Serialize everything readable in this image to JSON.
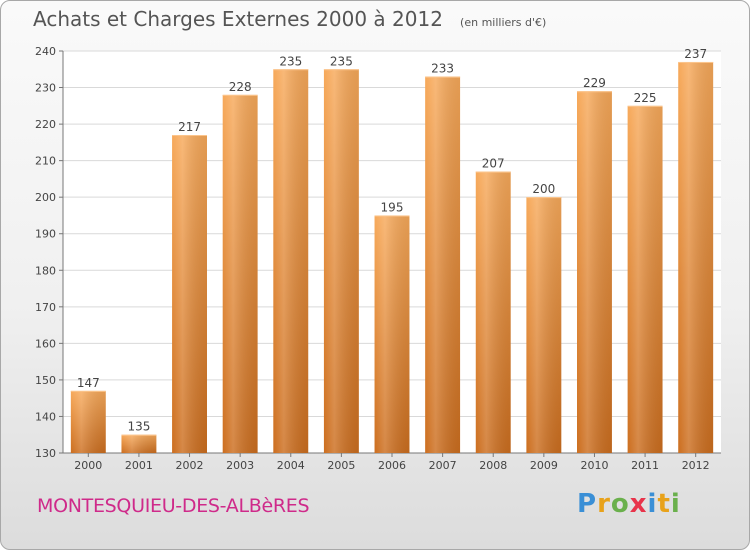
{
  "header": {
    "title": "Achats et Charges Externes 2000 à 2012",
    "subtitle": "(en milliers d'€)"
  },
  "footer": {
    "commune": "MONTESQUIEU-DES-ALBèRES",
    "brand_letters": [
      "P",
      "r",
      "o",
      "x",
      "i",
      "t",
      "i"
    ],
    "brand_colors": [
      "#3a8fd6",
      "#e8a21a",
      "#6ab04c",
      "#e8334a",
      "#3a8fd6",
      "#e8a21a",
      "#6ab04c"
    ]
  },
  "colors": {
    "bar_top": "#f7a95a",
    "bar_bottom": "#cc6e1f",
    "bar_highlight": "#fbc48b",
    "commune": "#cf2a8a"
  },
  "chart_data": {
    "type": "bar",
    "categories": [
      "2000",
      "2001",
      "2002",
      "2003",
      "2004",
      "2005",
      "2006",
      "2007",
      "2008",
      "2009",
      "2010",
      "2011",
      "2012"
    ],
    "values": [
      147,
      135,
      217,
      228,
      235,
      235,
      195,
      233,
      207,
      200,
      229,
      225,
      237
    ],
    "ylim": [
      130,
      240
    ],
    "yticks": [
      130,
      140,
      150,
      160,
      170,
      180,
      190,
      200,
      210,
      220,
      230,
      240
    ],
    "grid": true,
    "data_labels": true
  }
}
